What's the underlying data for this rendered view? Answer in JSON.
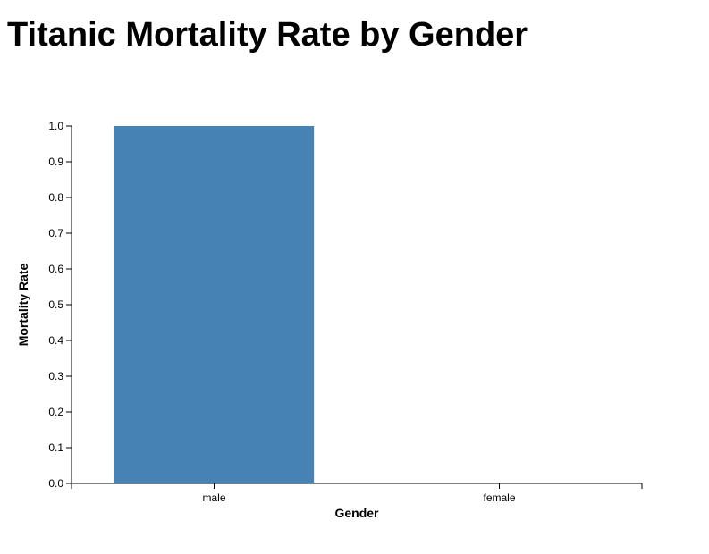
{
  "title": "Titanic Mortality Rate by Gender",
  "chart_data": {
    "type": "bar",
    "title": "Titanic Mortality Rate by Gender",
    "categories": [
      "male",
      "female"
    ],
    "values": [
      1.0,
      0.0
    ],
    "xlabel": "Gender",
    "ylabel": "Mortality Rate",
    "ylim": [
      0,
      1.0
    ],
    "yticks": [
      "0.0",
      "0.1",
      "0.2",
      "0.3",
      "0.4",
      "0.5",
      "0.6",
      "0.7",
      "0.8",
      "0.9",
      "1.0"
    ],
    "bar_color": "#4682b4",
    "axis_color": "#000000",
    "grid": false
  }
}
